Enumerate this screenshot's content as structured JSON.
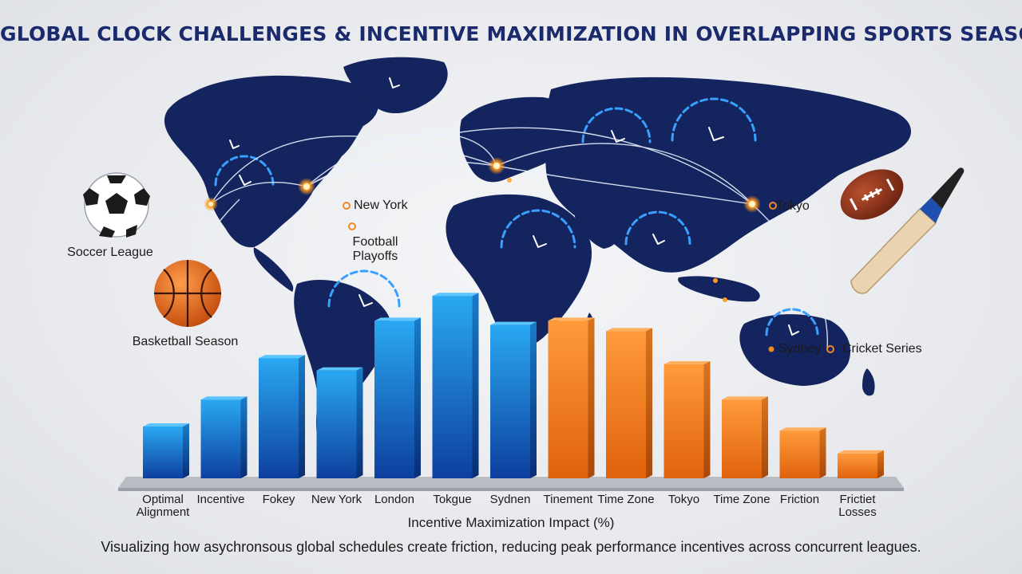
{
  "title": "GLOBAL CLOCK CHALLENGES & INCENTIVE MAXIMIZATION IN OVERLAPPING SPORTS SEASONS",
  "map_labels": {
    "soccer": "Soccer League",
    "basketball": "Basketball Season",
    "new_york": "New York",
    "football_line1": "Football",
    "football_line2": "Playoffs",
    "tokyo": "Tokyo",
    "sydney": "Sydney",
    "cricket": "Cricket Series"
  },
  "caption": "Visualizing how asychronsous global schedules create friction, reducing peak performance incentives across concurrent leagues.",
  "colors": {
    "blue": "#1565d8",
    "orange": "#f07d1a",
    "navy": "#14245e",
    "title": "#1a2a6c"
  },
  "chart_data": {
    "type": "bar",
    "title": "",
    "xlabel": "Incentive Maximization Impact (%)",
    "ylabel": "",
    "categories": [
      "Optimal\nAlignment",
      "Incentive",
      "Fokey",
      "New York",
      "London",
      "Tokgue",
      "Sydnen",
      "Tinement",
      "Time Zone",
      "Tokyo",
      "Time Zone",
      "Friction",
      "Frictiet\nLosses"
    ],
    "values": [
      25,
      38,
      58,
      52,
      76,
      88,
      74,
      76,
      71,
      55,
      38,
      23,
      12
    ],
    "colors": [
      "blue",
      "blue",
      "blue",
      "blue",
      "blue",
      "blue",
      "blue",
      "orange",
      "orange",
      "orange",
      "orange",
      "orange",
      "orange"
    ],
    "ylim": [
      0,
      100
    ],
    "grid": false
  }
}
